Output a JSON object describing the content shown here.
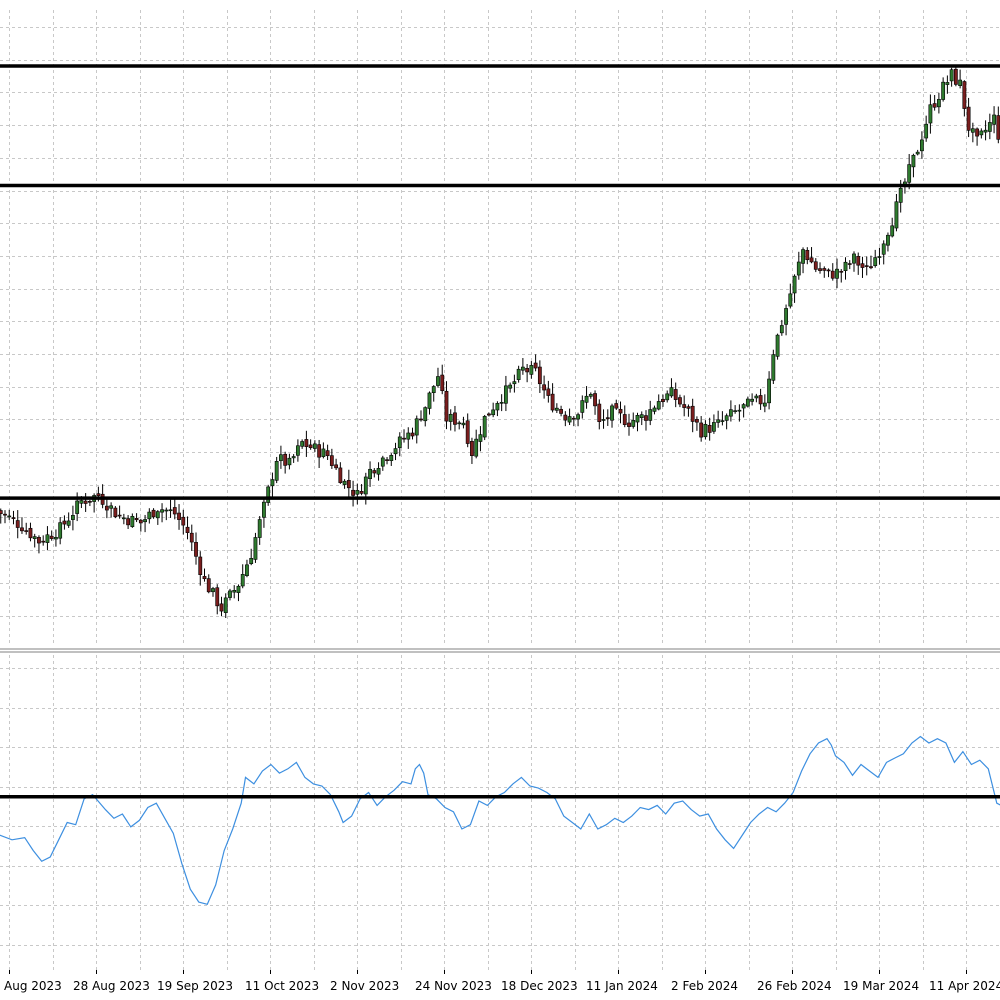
{
  "colors": {
    "background": "#ffffff",
    "grid": "#c8c8c8",
    "bull_body": "#2f7a2f",
    "bear_body": "#7a1e1e",
    "wick": "#000000",
    "level_line": "#000000",
    "oscillator": "#3d8fe0"
  },
  "chart_data": [
    {
      "type": "candlestick",
      "xlabel": "",
      "ylabel": "",
      "grid": true,
      "x_tick_labels": [
        "Aug 2023",
        "28 Aug 2023",
        "19 Sep 2023",
        "11 Oct 2023",
        "2 Nov 2023",
        "24 Nov 2023",
        "18 Dec 2023",
        "11 Jan 2024",
        "2 Feb 2024",
        "26 Feb 2024",
        "19 Mar 2024",
        "11 Apr 2024"
      ],
      "y_axis_visible": false,
      "ylim": [
        0,
        100
      ],
      "horizontal_levels": [
        92.5,
        73.0,
        22.0
      ],
      "close_path_anchors": [
        [
          0,
          20.0
        ],
        [
          6,
          17.5
        ],
        [
          10,
          15.0
        ],
        [
          15,
          17.0
        ],
        [
          20,
          21.5
        ],
        [
          24,
          22.5
        ],
        [
          29,
          19.0
        ],
        [
          34,
          18.0
        ],
        [
          38,
          20.5
        ],
        [
          42,
          19.5
        ],
        [
          45,
          16.5
        ],
        [
          49,
          8.5
        ],
        [
          53,
          4.0
        ],
        [
          57,
          8.0
        ],
        [
          60,
          13.0
        ],
        [
          63,
          20.5
        ],
        [
          66,
          28.5
        ],
        [
          69,
          27.5
        ],
        [
          72,
          31.0
        ],
        [
          75,
          30.0
        ],
        [
          78,
          29.0
        ],
        [
          82,
          24.5
        ],
        [
          85,
          22.5
        ],
        [
          88,
          26.5
        ],
        [
          91,
          28.5
        ],
        [
          94,
          30.5
        ],
        [
          98,
          33.0
        ],
        [
          101,
          37.0
        ],
        [
          104,
          42.0
        ],
        [
          106,
          35.0
        ],
        [
          110,
          34.5
        ],
        [
          112,
          29.5
        ],
        [
          115,
          35.0
        ],
        [
          118,
          38.0
        ],
        [
          121,
          40.0
        ],
        [
          124,
          43.0
        ],
        [
          127,
          42.5
        ],
        [
          130,
          38.0
        ],
        [
          134,
          35.5
        ],
        [
          137,
          36.0
        ],
        [
          140,
          39.5
        ],
        [
          142,
          34.0
        ],
        [
          145,
          36.0
        ],
        [
          149,
          34.5
        ],
        [
          153,
          35.5
        ],
        [
          156,
          38.0
        ],
        [
          159,
          39.0
        ],
        [
          163,
          36.0
        ],
        [
          166,
          33.0
        ],
        [
          170,
          34.0
        ],
        [
          174,
          36.0
        ],
        [
          178,
          37.5
        ],
        [
          181,
          38.0
        ],
        [
          183,
          46.0
        ],
        [
          186,
          53.0
        ],
        [
          190,
          62.5
        ],
        [
          193,
          59.5
        ],
        [
          196,
          58.5
        ],
        [
          199,
          59.0
        ],
        [
          202,
          61.0
        ],
        [
          205,
          59.0
        ],
        [
          208,
          62.5
        ],
        [
          211,
          67.5
        ],
        [
          214,
          73.5
        ],
        [
          217,
          79.0
        ],
        [
          220,
          85.5
        ],
        [
          223,
          89.0
        ],
        [
          225,
          91.0
        ],
        [
          227,
          89.5
        ],
        [
          229,
          82.5
        ],
        [
          231,
          80.0
        ],
        [
          233,
          82.0
        ],
        [
          235,
          84.0
        ],
        [
          238,
          76.0
        ]
      ]
    },
    {
      "type": "line",
      "xlabel": "",
      "ylabel": "",
      "grid": true,
      "ylim": [
        0,
        100
      ],
      "horizontal_levels": [
        55.0
      ],
      "series": [
        {
          "values": [
            [
              0,
              38
            ],
            [
              4,
              35
            ],
            [
              7,
              36
            ],
            [
              9,
              30
            ],
            [
              11,
              25
            ],
            [
              13,
              27
            ],
            [
              15,
              35
            ],
            [
              17,
              43
            ],
            [
              19,
              42
            ],
            [
              21,
              54
            ],
            [
              23,
              56
            ],
            [
              26,
              49
            ],
            [
              28,
              45
            ],
            [
              30,
              47
            ],
            [
              32,
              41
            ],
            [
              34,
              44
            ],
            [
              36,
              50
            ],
            [
              38,
              52
            ],
            [
              40,
              45
            ],
            [
              42,
              38
            ],
            [
              44,
              24
            ],
            [
              46,
              12
            ],
            [
              48,
              6
            ],
            [
              50,
              5
            ],
            [
              52,
              14
            ],
            [
              54,
              30
            ],
            [
              56,
              40
            ],
            [
              58,
              52
            ],
            [
              59,
              64
            ],
            [
              61,
              61
            ],
            [
              63,
              67
            ],
            [
              65,
              70
            ],
            [
              67,
              66
            ],
            [
              69,
              68
            ],
            [
              71,
              71
            ],
            [
              73,
              64
            ],
            [
              75,
              61
            ],
            [
              77,
              60
            ],
            [
              79,
              56
            ],
            [
              81,
              48
            ],
            [
              82,
              43
            ],
            [
              84,
              46
            ],
            [
              86,
              54
            ],
            [
              88,
              57
            ],
            [
              90,
              51
            ],
            [
              92,
              55
            ],
            [
              94,
              58
            ],
            [
              96,
              62
            ],
            [
              98,
              61
            ],
            [
              99,
              68
            ],
            [
              100,
              70
            ],
            [
              101,
              66
            ],
            [
              102,
              56
            ],
            [
              104,
              54
            ],
            [
              106,
              50
            ],
            [
              108,
              48
            ],
            [
              110,
              40
            ],
            [
              112,
              42
            ],
            [
              114,
              53
            ],
            [
              116,
              51
            ],
            [
              118,
              55
            ],
            [
              120,
              57
            ],
            [
              122,
              61
            ],
            [
              124,
              64
            ],
            [
              126,
              60
            ],
            [
              128,
              59
            ],
            [
              130,
              57
            ],
            [
              132,
              54
            ],
            [
              134,
              46
            ],
            [
              136,
              43
            ],
            [
              138,
              40
            ],
            [
              140,
              47
            ],
            [
              142,
              40
            ],
            [
              144,
              42
            ],
            [
              146,
              45
            ],
            [
              148,
              43
            ],
            [
              150,
              46
            ],
            [
              152,
              50
            ],
            [
              154,
              49
            ],
            [
              156,
              51
            ],
            [
              158,
              47
            ],
            [
              160,
              52
            ],
            [
              162,
              53
            ],
            [
              164,
              49
            ],
            [
              166,
              46
            ],
            [
              168,
              47
            ],
            [
              170,
              40
            ],
            [
              172,
              35
            ],
            [
              174,
              31
            ],
            [
              176,
              37
            ],
            [
              178,
              43
            ],
            [
              180,
              47
            ],
            [
              182,
              50
            ],
            [
              184,
              48
            ],
            [
              186,
              52
            ],
            [
              188,
              57
            ],
            [
              190,
              67
            ],
            [
              192,
              75
            ],
            [
              194,
              80
            ],
            [
              196,
              82
            ],
            [
              197,
              79
            ],
            [
              198,
              74
            ],
            [
              200,
              71
            ],
            [
              202,
              65
            ],
            [
              204,
              70
            ],
            [
              206,
              67
            ],
            [
              208,
              64
            ],
            [
              210,
              71
            ],
            [
              212,
              73
            ],
            [
              214,
              75
            ],
            [
              216,
              80
            ],
            [
              218,
              83
            ],
            [
              220,
              80
            ],
            [
              222,
              82
            ],
            [
              224,
              80
            ],
            [
              226,
              71
            ],
            [
              228,
              76
            ],
            [
              230,
              70
            ],
            [
              232,
              72
            ],
            [
              234,
              68
            ],
            [
              236,
              52
            ],
            [
              238,
              50
            ]
          ]
        }
      ]
    }
  ]
}
